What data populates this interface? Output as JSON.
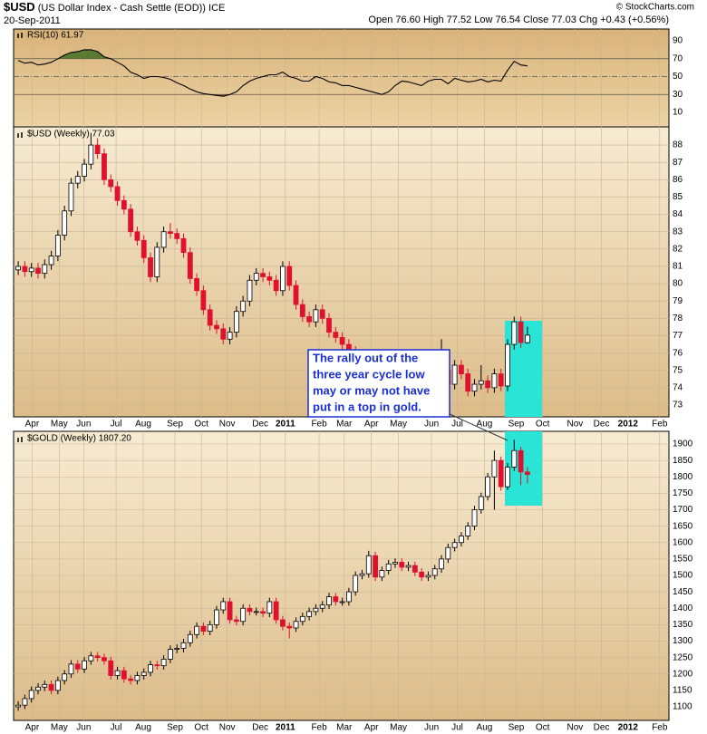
{
  "header": {
    "symbol": "$USD",
    "description": "(US Dollar Index - Cash Settle (EOD))",
    "exchange": "ICE",
    "date": "20-Sep-2011",
    "open_label": "Open",
    "open": "76.60",
    "high_label": "High",
    "high": "77.52",
    "low_label": "Low",
    "low": "76.54",
    "close_label": "Close",
    "close": "77.03",
    "chg_label": "Chg",
    "chg": "+0.43",
    "chg_pct": "(+0.56%)",
    "credit": "© StockCharts.com"
  },
  "annotation": {
    "lines": [
      "The rally out of the",
      "three year cycle low",
      "may or may not have",
      "put in a top in gold."
    ]
  },
  "chart_data": [
    {
      "type": "line",
      "title": "RSI(10) 61.97",
      "color": "#000000",
      "overbought_color": "#5b7a32",
      "oversold_color": "#a8503c",
      "values": [
        68,
        65,
        66,
        63,
        64,
        66,
        70,
        74,
        77,
        78,
        80,
        80,
        78,
        72,
        70,
        66,
        62,
        55,
        52,
        48,
        50,
        50,
        49,
        47,
        43,
        40,
        36,
        33,
        31,
        30,
        29,
        28,
        30,
        33,
        40,
        45,
        48,
        50,
        52,
        52,
        55,
        50,
        48,
        45,
        45,
        50,
        48,
        44,
        43,
        40,
        40,
        38,
        36,
        34,
        32,
        30,
        33,
        40,
        45,
        44,
        42,
        40,
        45,
        47,
        47,
        42,
        48,
        46,
        44,
        45,
        47,
        44,
        46,
        45,
        57,
        67,
        63,
        61.97
      ],
      "xlim": [
        -0.7,
        98.4
      ],
      "ylim": [
        -6.2,
        103.2
      ],
      "yticks": [
        10,
        30,
        50,
        70,
        90
      ],
      "reference_lines": [
        70,
        50,
        30
      ]
    },
    {
      "type": "candlestick",
      "title": "$USD (Weekly) 77.03",
      "up_color": "#ffffff",
      "down_color": "#e0102f",
      "grid": true,
      "open": [
        80.8,
        81.0,
        80.7,
        80.9,
        80.6,
        81.1,
        81.6,
        82.8,
        84.2,
        85.8,
        86.2,
        86.9,
        88.0,
        87.5,
        86.0,
        85.6,
        84.8,
        84.3,
        83.0,
        82.5,
        81.5,
        80.4,
        82.1,
        83.0,
        82.9,
        82.6,
        81.8,
        80.3,
        79.6,
        78.5,
        77.6,
        77.4,
        76.8,
        77.2,
        78.4,
        79.0,
        80.2,
        80.6,
        80.4,
        80.2,
        79.6,
        81.0,
        79.9,
        78.8,
        78.1,
        77.8,
        78.5,
        78.0,
        77.2,
        76.9,
        76.5,
        76.1,
        75.3,
        74.7,
        74.0,
        73.2,
        72.9,
        73.5,
        74.9,
        75.6,
        75.2,
        74.8,
        74.6,
        74.4,
        74.8,
        75.0,
        74.2,
        75.3,
        74.8,
        73.8,
        74.2,
        74.4,
        74.0,
        74.8,
        74.1,
        76.5,
        77.8,
        76.6
      ],
      "high": [
        81.3,
        81.3,
        81.2,
        81.2,
        81.4,
        81.9,
        83.1,
        84.5,
        86.1,
        86.5,
        87.2,
        88.7,
        88.4,
        87.8,
        86.3,
        85.9,
        85.1,
        84.6,
        83.3,
        82.8,
        81.8,
        82.4,
        83.3,
        83.5,
        83.2,
        82.9,
        82.1,
        80.6,
        79.9,
        78.8,
        77.9,
        77.7,
        77.5,
        78.7,
        79.3,
        80.5,
        80.9,
        80.9,
        80.7,
        80.5,
        81.3,
        81.3,
        80.2,
        79.1,
        78.4,
        78.8,
        78.8,
        78.3,
        77.5,
        77.2,
        76.8,
        76.4,
        75.6,
        75.0,
        74.3,
        73.5,
        73.8,
        75.2,
        75.9,
        75.9,
        75.5,
        75.1,
        74.9,
        75.1,
        76.8,
        75.3,
        75.6,
        75.6,
        75.1,
        74.5,
        75.3,
        74.7,
        75.1,
        75.1,
        76.8,
        78.1,
        78.1,
        77.52
      ],
      "low": [
        80.5,
        80.4,
        80.4,
        80.3,
        80.3,
        80.8,
        81.3,
        82.5,
        83.9,
        85.5,
        85.9,
        86.6,
        87.2,
        85.7,
        85.3,
        84.5,
        84.0,
        82.7,
        82.2,
        81.2,
        80.1,
        80.1,
        81.8,
        82.6,
        82.3,
        81.5,
        80.0,
        79.3,
        78.2,
        77.3,
        77.1,
        76.5,
        76.5,
        76.9,
        78.1,
        78.7,
        79.9,
        80.1,
        79.9,
        79.3,
        79.3,
        79.6,
        78.5,
        77.8,
        77.5,
        77.5,
        77.7,
        76.9,
        76.6,
        76.2,
        75.8,
        75.0,
        74.4,
        73.7,
        72.9,
        72.6,
        72.6,
        73.2,
        74.6,
        74.9,
        74.5,
        74.3,
        74.1,
        74.1,
        74.5,
        73.9,
        73.9,
        74.5,
        73.5,
        73.5,
        73.9,
        73.7,
        73.7,
        73.8,
        73.8,
        76.2,
        76.3,
        76.54
      ],
      "close": [
        81.0,
        80.7,
        80.9,
        80.6,
        81.1,
        81.6,
        82.8,
        84.2,
        85.8,
        86.2,
        86.9,
        88.0,
        87.5,
        86.0,
        85.6,
        84.8,
        84.3,
        83.0,
        82.5,
        81.5,
        80.4,
        82.1,
        83.0,
        82.9,
        82.6,
        81.8,
        80.3,
        79.6,
        78.5,
        77.6,
        77.4,
        76.8,
        77.2,
        78.4,
        79.0,
        80.2,
        80.6,
        80.4,
        80.2,
        79.6,
        81.0,
        79.9,
        78.8,
        78.1,
        77.8,
        78.5,
        78.0,
        77.2,
        76.9,
        76.5,
        76.1,
        75.3,
        74.7,
        74.0,
        73.2,
        72.9,
        73.5,
        74.9,
        75.6,
        75.2,
        74.8,
        74.6,
        74.4,
        74.8,
        75.0,
        74.2,
        75.3,
        74.8,
        73.8,
        74.2,
        74.4,
        74.0,
        74.8,
        74.1,
        76.5,
        77.8,
        76.6,
        77.03
      ],
      "xlim": [
        -0.7,
        98.4
      ],
      "ylim": [
        72.32,
        89.05
      ],
      "yticks": [
        73,
        74,
        75,
        76,
        77,
        78,
        79,
        80,
        81,
        82,
        83,
        84,
        85,
        86,
        87,
        88
      ],
      "xticks": [
        {
          "value": 2.1,
          "label": "Apr"
        },
        {
          "value": 6.2,
          "label": "May"
        },
        {
          "value": 9.9,
          "label": "Jun"
        },
        {
          "value": 14.8,
          "label": "Jul"
        },
        {
          "value": 18.9,
          "label": "Aug"
        },
        {
          "value": 23.7,
          "label": "Sep"
        },
        {
          "value": 27.7,
          "label": "Oct"
        },
        {
          "value": 31.6,
          "label": "Nov"
        },
        {
          "value": 36.6,
          "label": "Dec"
        },
        {
          "value": 40.4,
          "label": "2011"
        },
        {
          "value": 45.5,
          "label": "Feb"
        },
        {
          "value": 49.3,
          "label": "Mar"
        },
        {
          "value": 53.4,
          "label": "Apr"
        },
        {
          "value": 57.5,
          "label": "May"
        },
        {
          "value": 62.5,
          "label": "Jun"
        },
        {
          "value": 66.4,
          "label": "Jul"
        },
        {
          "value": 70.5,
          "label": "Aug"
        },
        {
          "value": 75.3,
          "label": "Sep"
        },
        {
          "value": 79.3,
          "label": "Oct"
        },
        {
          "value": 84.2,
          "label": "Nov"
        },
        {
          "value": 88.2,
          "label": "Dec"
        },
        {
          "value": 92.2,
          "label": "2012"
        },
        {
          "value": 97,
          "label": "Feb"
        }
      ]
    },
    {
      "type": "candlestick",
      "title": "$GOLD (Weekly) 1807.20",
      "up_color": "#ffffff",
      "down_color": "#e0102f",
      "grid": true,
      "open": [
        1100,
        1105,
        1125,
        1150,
        1160,
        1168,
        1150,
        1180,
        1200,
        1230,
        1215,
        1240,
        1255,
        1250,
        1240,
        1195,
        1210,
        1185,
        1180,
        1195,
        1205,
        1228,
        1225,
        1245,
        1275,
        1278,
        1295,
        1320,
        1345,
        1330,
        1350,
        1395,
        1420,
        1365,
        1360,
        1400,
        1390,
        1390,
        1385,
        1420,
        1365,
        1345,
        1340,
        1360,
        1375,
        1390,
        1400,
        1410,
        1435,
        1420,
        1420,
        1450,
        1500,
        1505,
        1560,
        1495,
        1515,
        1535,
        1540,
        1525,
        1530,
        1510,
        1495,
        1500,
        1520,
        1550,
        1585,
        1600,
        1620,
        1650,
        1700,
        1740,
        1800,
        1850,
        1770,
        1830,
        1880,
        1815
      ],
      "high": [
        1117,
        1137,
        1162,
        1172,
        1180,
        1180,
        1192,
        1212,
        1242,
        1242,
        1252,
        1267,
        1267,
        1262,
        1252,
        1222,
        1222,
        1197,
        1207,
        1217,
        1240,
        1240,
        1257,
        1287,
        1290,
        1307,
        1332,
        1357,
        1357,
        1362,
        1407,
        1432,
        1432,
        1377,
        1412,
        1412,
        1402,
        1402,
        1432,
        1432,
        1377,
        1357,
        1372,
        1387,
        1402,
        1412,
        1422,
        1447,
        1447,
        1432,
        1462,
        1512,
        1517,
        1575,
        1572,
        1527,
        1547,
        1552,
        1552,
        1542,
        1542,
        1522,
        1512,
        1532,
        1562,
        1597,
        1612,
        1632,
        1662,
        1712,
        1752,
        1812,
        1880,
        1862,
        1842,
        1913,
        1892,
        1830
      ],
      "low": [
        1088,
        1093,
        1113,
        1138,
        1148,
        1138,
        1138,
        1168,
        1188,
        1203,
        1203,
        1228,
        1238,
        1228,
        1183,
        1183,
        1173,
        1168,
        1168,
        1183,
        1193,
        1213,
        1213,
        1233,
        1263,
        1266,
        1283,
        1308,
        1318,
        1318,
        1338,
        1383,
        1353,
        1348,
        1348,
        1378,
        1378,
        1373,
        1373,
        1353,
        1333,
        1308,
        1328,
        1348,
        1363,
        1378,
        1388,
        1398,
        1408,
        1408,
        1408,
        1438,
        1488,
        1493,
        1483,
        1483,
        1503,
        1523,
        1513,
        1513,
        1498,
        1483,
        1483,
        1488,
        1508,
        1538,
        1573,
        1588,
        1608,
        1638,
        1688,
        1728,
        1700,
        1758,
        1760,
        1818,
        1775,
        1780
      ],
      "close": [
        1105,
        1125,
        1150,
        1160,
        1168,
        1150,
        1180,
        1200,
        1230,
        1215,
        1240,
        1255,
        1250,
        1240,
        1195,
        1210,
        1185,
        1180,
        1195,
        1205,
        1228,
        1225,
        1245,
        1275,
        1278,
        1295,
        1320,
        1345,
        1330,
        1350,
        1395,
        1420,
        1365,
        1360,
        1400,
        1390,
        1390,
        1385,
        1420,
        1365,
        1345,
        1340,
        1360,
        1375,
        1390,
        1400,
        1410,
        1435,
        1420,
        1420,
        1450,
        1500,
        1505,
        1560,
        1495,
        1515,
        1535,
        1540,
        1525,
        1530,
        1510,
        1495,
        1500,
        1520,
        1550,
        1585,
        1600,
        1620,
        1650,
        1700,
        1740,
        1800,
        1850,
        1770,
        1830,
        1880,
        1815,
        1807.2
      ],
      "xlim": [
        -0.7,
        98.4
      ],
      "ylim": [
        1058.6,
        1938.6
      ],
      "yticks": [
        1100,
        1150,
        1200,
        1250,
        1300,
        1350,
        1400,
        1450,
        1500,
        1550,
        1600,
        1650,
        1700,
        1750,
        1800,
        1850,
        1900
      ],
      "xticks": [
        {
          "value": 2.1,
          "label": "Apr"
        },
        {
          "value": 6.2,
          "label": "May"
        },
        {
          "value": 9.9,
          "label": "Jun"
        },
        {
          "value": 14.8,
          "label": "Jul"
        },
        {
          "value": 18.9,
          "label": "Aug"
        },
        {
          "value": 23.7,
          "label": "Sep"
        },
        {
          "value": 27.7,
          "label": "Oct"
        },
        {
          "value": 31.6,
          "label": "Nov"
        },
        {
          "value": 36.6,
          "label": "Dec"
        },
        {
          "value": 40.4,
          "label": "2011"
        },
        {
          "value": 45.5,
          "label": "Feb"
        },
        {
          "value": 49.3,
          "label": "Mar"
        },
        {
          "value": 53.4,
          "label": "Apr"
        },
        {
          "value": 57.5,
          "label": "May"
        },
        {
          "value": 62.5,
          "label": "Jun"
        },
        {
          "value": 66.4,
          "label": "Jul"
        },
        {
          "value": 70.5,
          "label": "Aug"
        },
        {
          "value": 75.3,
          "label": "Sep"
        },
        {
          "value": 79.3,
          "label": "Oct"
        },
        {
          "value": 84.2,
          "label": "Nov"
        },
        {
          "value": 88.2,
          "label": "Dec"
        },
        {
          "value": 92.2,
          "label": "2012"
        },
        {
          "value": 97,
          "label": "Feb"
        }
      ]
    }
  ]
}
